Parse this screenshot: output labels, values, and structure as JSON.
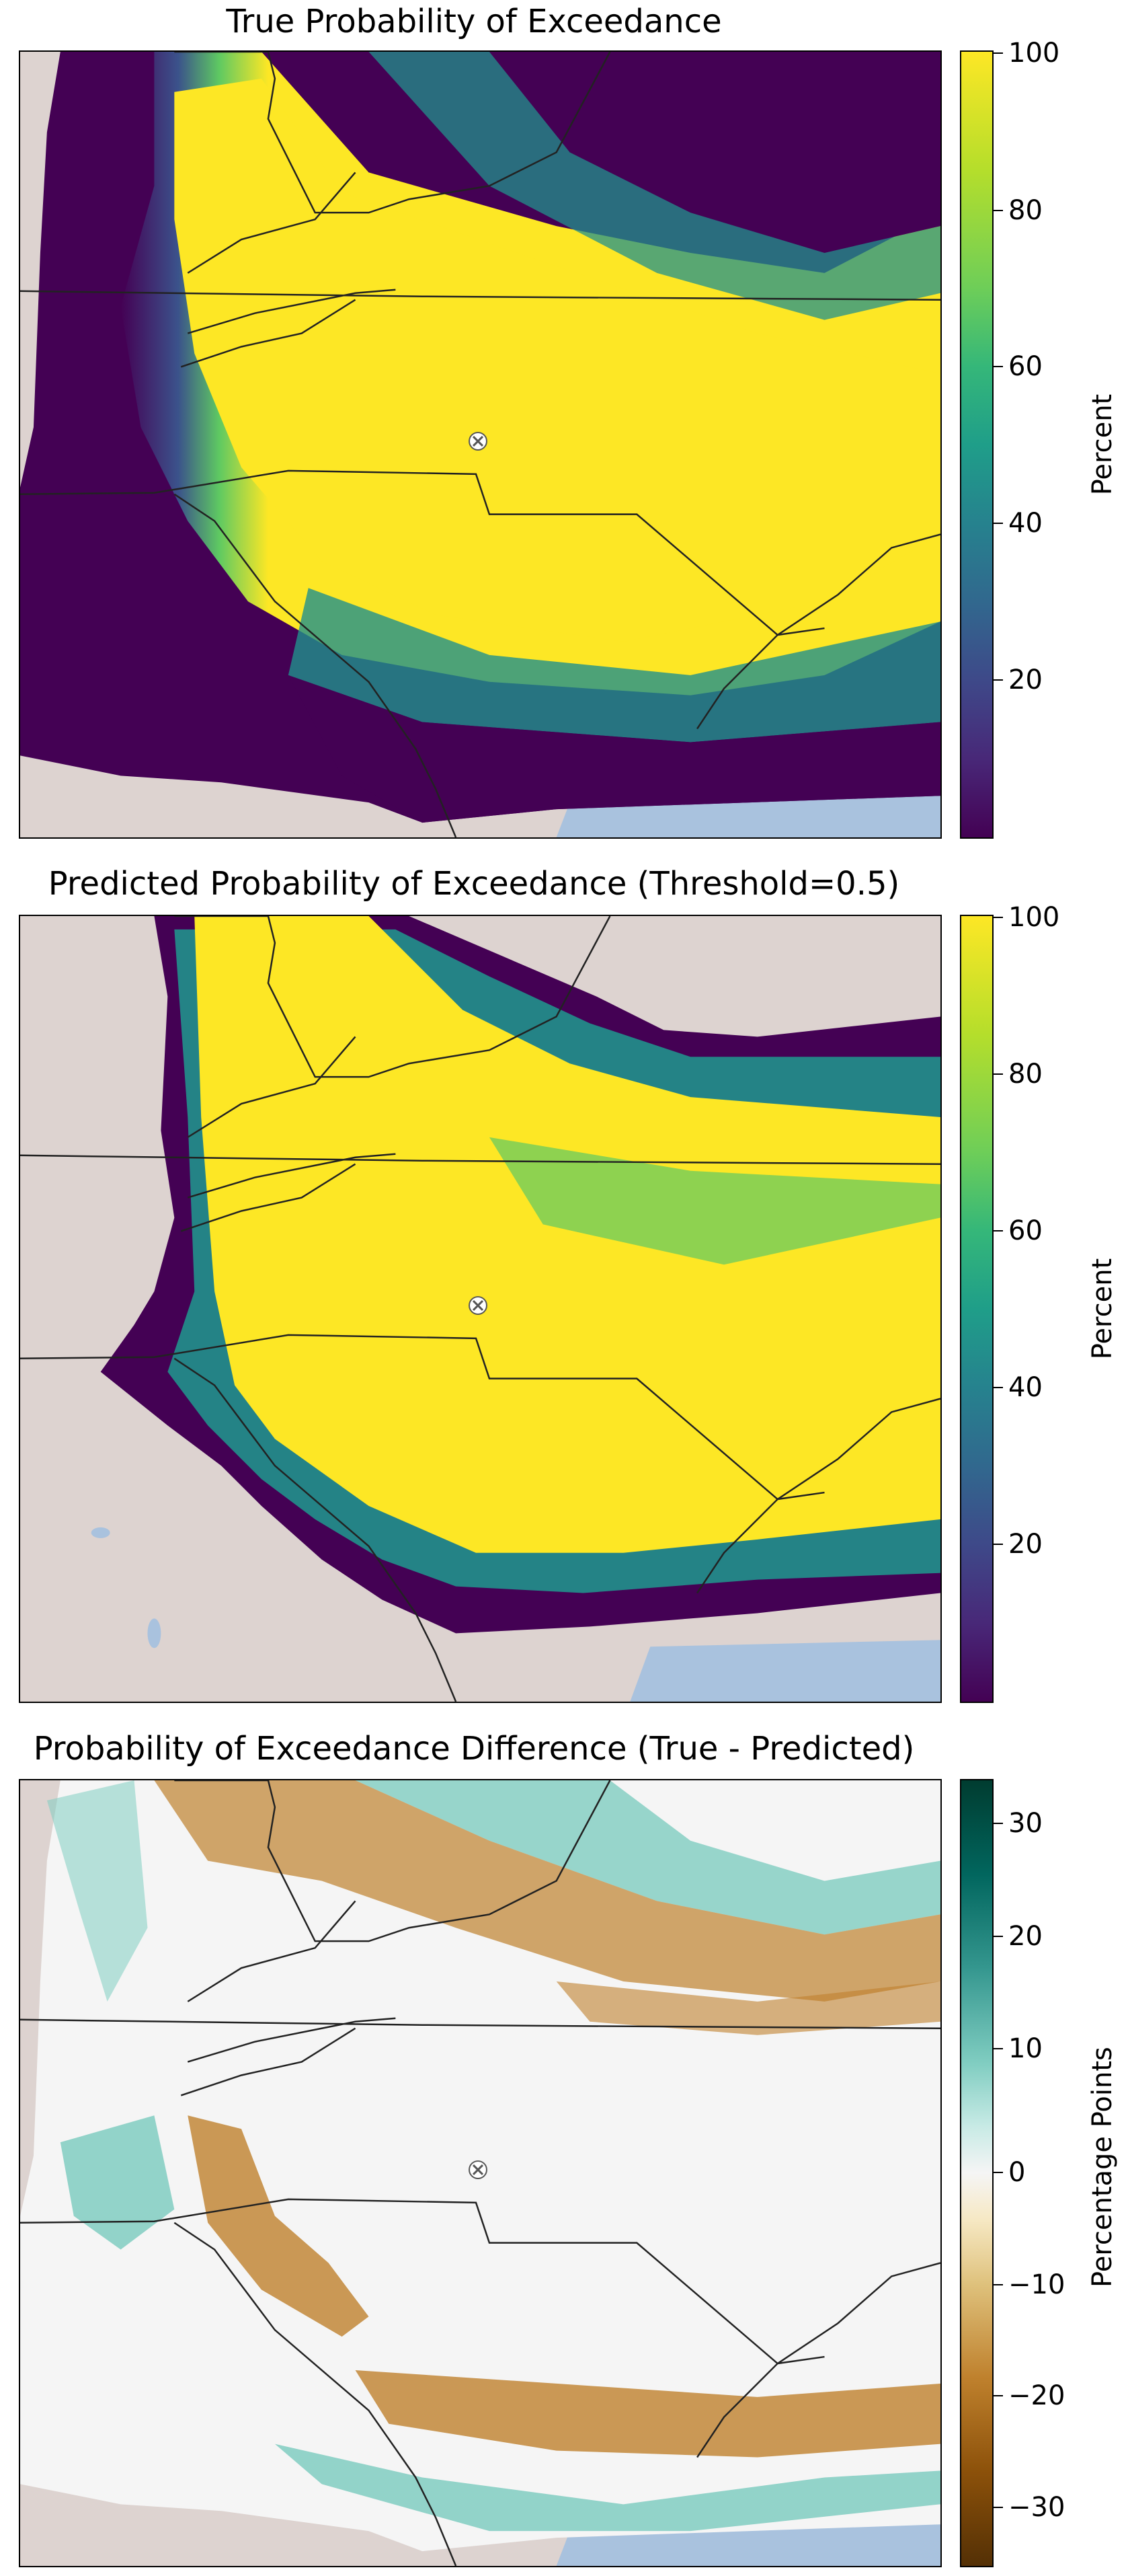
{
  "panels": [
    {
      "title": "True Probability of Exceedance",
      "colorbar": {
        "colormap": "viridis",
        "min": 0,
        "max": 100,
        "ticks": [
          "100",
          "80",
          "60",
          "40",
          "20"
        ],
        "label": "Percent"
      }
    },
    {
      "title": "Predicted Probability of Exceedance (Threshold=0.5)",
      "colorbar": {
        "colormap": "viridis",
        "min": 0,
        "max": 100,
        "ticks": [
          "100",
          "80",
          "60",
          "40",
          "20"
        ],
        "label": "Percent"
      }
    },
    {
      "title": "Probability of Exceedance Difference (True - Predicted)",
      "colorbar": {
        "colormap": "BrBG",
        "min": -35,
        "max": 35,
        "ticks": [
          "30",
          "20",
          "10",
          "0",
          "−10",
          "−20",
          "−30"
        ],
        "label": "Percentage Points"
      }
    }
  ],
  "colors": {
    "land": "#ddd3d0",
    "water": "#a9c2de",
    "viridis_low": "#440154",
    "viridis_mid": "#21918c",
    "viridis_high": "#fde725",
    "brbg_low": "#543005",
    "brbg_mid": "#f5f5f5",
    "brbg_high": "#003c30"
  },
  "map": {
    "marker": "site-marker",
    "borders": "state-borders"
  }
}
